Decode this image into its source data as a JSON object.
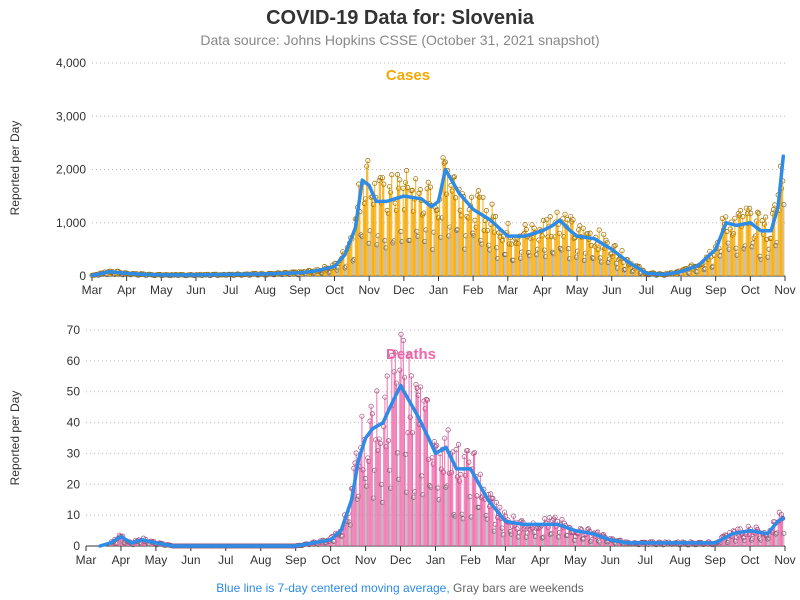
{
  "header": {
    "title": "COVID-19 Data for: Slovenia",
    "subtitle": "Data source: Johns Hopkins CSSE (October 31, 2021 snapshot)"
  },
  "footer": {
    "blue_note": "Blue line is 7-day centered moving average,",
    "gray_note": "Gray bars are weekends"
  },
  "colors": {
    "cases": "#F5A800",
    "deaths": "#EE66AA",
    "average": "#2E8BE6",
    "weekend": "#999999"
  },
  "chart_data": [
    {
      "type": "bar",
      "title": "Cases",
      "ylabel": "Reported per Day",
      "ylim": [
        0,
        4000
      ],
      "y_ticks": [
        "0",
        "1,000",
        "2,000",
        "3,000",
        "4,000"
      ],
      "x_ticks": [
        "Mar",
        "Apr",
        "May",
        "Jun",
        "Jul",
        "Aug",
        "Sep",
        "Oct",
        "Nov",
        "Dec",
        "Jan",
        "Feb",
        "Mar",
        "Apr",
        "May",
        "Jun",
        "Jul",
        "Aug",
        "Sep",
        "Oct",
        "Nov"
      ],
      "grid": "horizontal dotted",
      "series": [
        {
          "name": "7-day centered moving average",
          "x_month": [
            0,
            0.5,
            1,
            1.5,
            2,
            3,
            4,
            5,
            6,
            6.5,
            7,
            7.3,
            7.6,
            7.8,
            8.0,
            8.2,
            8.5,
            9.0,
            9.5,
            9.8,
            10.0,
            10.2,
            10.6,
            11.0,
            11.5,
            12.0,
            12.5,
            13.0,
            13.3,
            13.5,
            13.8,
            14.0,
            14.5,
            15.0,
            15.5,
            16.0,
            16.5,
            17.0,
            17.5,
            18.0,
            18.3,
            18.6,
            19.0,
            19.3,
            19.6,
            19.8,
            19.95
          ],
          "values": [
            10,
            80,
            50,
            30,
            20,
            20,
            30,
            40,
            60,
            100,
            180,
            400,
            900,
            1800,
            1700,
            1400,
            1400,
            1500,
            1450,
            1300,
            1400,
            2000,
            1550,
            1250,
            1050,
            750,
            750,
            850,
            950,
            1050,
            850,
            750,
            700,
            500,
            250,
            50,
            30,
            80,
            200,
            500,
            1000,
            950,
            1000,
            850,
            850,
            1300,
            2250
          ]
        }
      ]
    },
    {
      "type": "bar",
      "title": "Deaths",
      "ylabel": "Reported per Day",
      "ylim": [
        0,
        70
      ],
      "y_ticks": [
        "0",
        "10",
        "20",
        "30",
        "40",
        "50",
        "60",
        "70"
      ],
      "x_ticks": [
        "Mar",
        "Apr",
        "May",
        "Jun",
        "Jul",
        "Aug",
        "Sep",
        "Oct",
        "Nov",
        "Dec",
        "Jan",
        "Feb",
        "Mar",
        "Apr",
        "May",
        "Jun",
        "Jul",
        "Aug",
        "Sep",
        "Oct",
        "Nov"
      ],
      "grid": "horizontal dotted",
      "series": [
        {
          "name": "7-day centered moving average",
          "x_month": [
            0.4,
            0.7,
            1.0,
            1.3,
            1.6,
            2.0,
            2.5,
            3,
            4,
            5,
            6,
            7.0,
            7.3,
            7.6,
            7.8,
            8.0,
            8.2,
            8.5,
            8.7,
            9.0,
            9.2,
            9.5,
            9.8,
            10.0,
            10.3,
            10.6,
            11.0,
            11.5,
            12.0,
            12.5,
            13.0,
            13.5,
            14.0,
            14.5,
            15.0,
            15.5,
            16.0,
            17.0,
            18.0,
            18.5,
            19.0,
            19.5,
            19.8,
            19.95
          ],
          "values": [
            0,
            1,
            3,
            1,
            2,
            1,
            0,
            0,
            0,
            0,
            0,
            2,
            5,
            15,
            28,
            35,
            38,
            40,
            45,
            52,
            48,
            42,
            35,
            30,
            32,
            25,
            25,
            15,
            8,
            7,
            7,
            7,
            5,
            4,
            2,
            1,
            1,
            1,
            1,
            4,
            5,
            4,
            8,
            9
          ]
        }
      ]
    }
  ]
}
